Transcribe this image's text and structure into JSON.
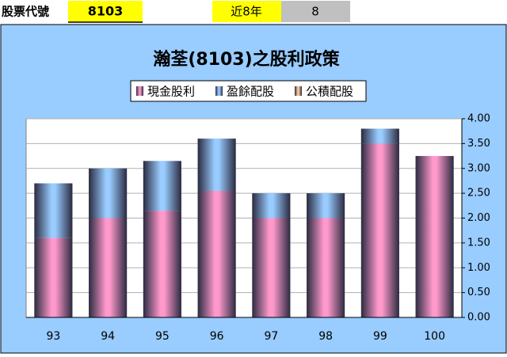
{
  "header": {
    "stock_label": "股票代號",
    "stock_code": "8103",
    "years_label": "近8年",
    "years_value": "8"
  },
  "chart_data": {
    "type": "stacked-bar",
    "title": "瀚荃(8103)之股利政策",
    "categories": [
      "93",
      "94",
      "95",
      "96",
      "97",
      "98",
      "99",
      "100"
    ],
    "series": [
      {
        "name": "現金股利",
        "color": "#ff99cc",
        "values": [
          1.6,
          2.0,
          2.15,
          2.55,
          2.0,
          2.0,
          3.5,
          3.25
        ]
      },
      {
        "name": "盈餘配股",
        "color": "#99ccff",
        "values": [
          1.1,
          1.0,
          1.0,
          1.05,
          0.5,
          0.5,
          0.3,
          0
        ]
      },
      {
        "name": "公積配股",
        "color": "#ffcc99",
        "values": [
          0,
          0,
          0,
          0,
          0,
          0,
          0,
          0
        ]
      }
    ],
    "ylim": [
      0,
      4
    ],
    "yticks": [
      {
        "value": 0,
        "label": "0.00"
      },
      {
        "value": 0.5,
        "label": "0.50"
      },
      {
        "value": 1,
        "label": "1.00"
      },
      {
        "value": 1.5,
        "label": "1.50"
      },
      {
        "value": 2,
        "label": "2.00"
      },
      {
        "value": 2.5,
        "label": "2.50"
      },
      {
        "value": 3,
        "label": "3.00"
      },
      {
        "value": 3.5,
        "label": "3.50"
      },
      {
        "value": 4,
        "label": "4.00"
      }
    ],
    "grid": true
  }
}
